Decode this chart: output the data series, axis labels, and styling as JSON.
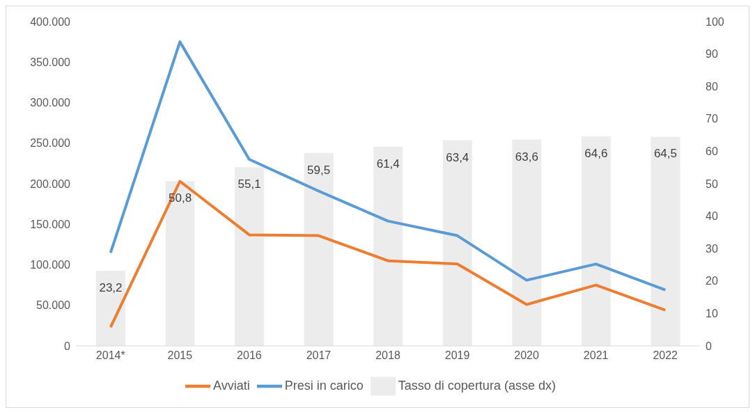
{
  "chart_data": {
    "type": "bar",
    "categories": [
      "2014*",
      "2015",
      "2016",
      "2017",
      "2018",
      "2019",
      "2020",
      "2021",
      "2022"
    ],
    "series": [
      {
        "name": "Tasso di copertura (asse dx)",
        "axis": "y2",
        "color": "#ececec",
        "values": [
          23.2,
          50.8,
          55.1,
          59.5,
          61.4,
          63.4,
          63.6,
          64.6,
          64.5
        ],
        "value_labels": [
          "23,2",
          "50,8",
          "55,1",
          "59,5",
          "61,4",
          "63,4",
          "63,6",
          "64,6",
          "64,5"
        ]
      },
      {
        "name": "Presi in carico",
        "type": "line",
        "color": "#5b9bd5",
        "values": [
          115000,
          375000,
          230000,
          191000,
          154000,
          136000,
          81000,
          101000,
          69000
        ]
      },
      {
        "name": "Avviati",
        "type": "line",
        "color": "#ed7d31",
        "values": [
          23000,
          203000,
          137000,
          136000,
          105000,
          101000,
          51000,
          75000,
          44000
        ]
      }
    ],
    "ylim": [
      0,
      400000
    ],
    "yticks": [
      0,
      {
        "value": 50000,
        "label": "50.000"
      },
      {
        "value": 100000,
        "label": "100.000"
      },
      {
        "value": 150000,
        "label": "150.000"
      },
      {
        "value": 200000,
        "label": "200.000"
      },
      {
        "value": 250000,
        "label": "250.000"
      },
      {
        "value": 300000,
        "label": "300.000"
      },
      {
        "value": 350000,
        "label": "350.000"
      },
      {
        "value": 400000,
        "label": "400.000"
      }
    ],
    "y2lim": [
      0,
      100
    ],
    "y2ticks": [
      0,
      10,
      20,
      30,
      40,
      50,
      60,
      70,
      80,
      90,
      100
    ],
    "grid": false,
    "legend": "bottom",
    "marker": "none",
    "line_style": "solid"
  }
}
